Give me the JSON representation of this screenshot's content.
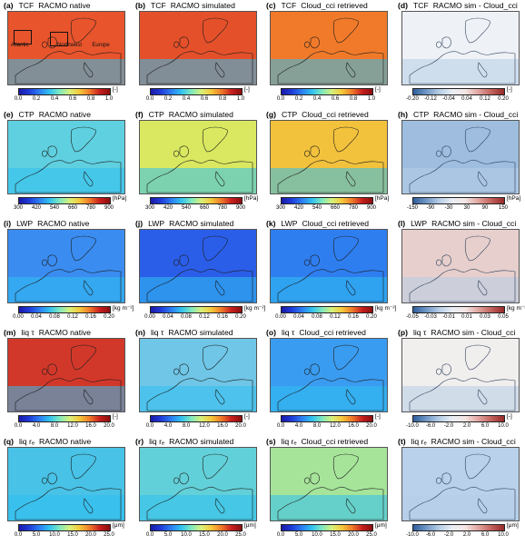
{
  "colors": {
    "ocean_blue": "#1f3bd9",
    "land_line": "#2b2b2b",
    "bg": "#ffffff"
  },
  "colorbars": {
    "jet": [
      "#1a1aa8",
      "#1f3bd9",
      "#2c7cf2",
      "#30c0f0",
      "#7ee8c0",
      "#d7f07a",
      "#f5c83a",
      "#f07a2a",
      "#c81e1e",
      "#8a0f0f"
    ],
    "diverging": [
      "#2f5d9b",
      "#6f97c6",
      "#b6cde6",
      "#e9eef5",
      "#f3e6e3",
      "#e1a6a2",
      "#c3635d",
      "#962a28"
    ]
  },
  "panels": [
    {
      "label": "(a)",
      "var": "TCF",
      "src": "RACMO native",
      "ticks": [
        "0.0",
        "0.2",
        "0.4",
        "0.6",
        "0.8",
        "1.0"
      ],
      "unit": "[-]",
      "cmap": "jet",
      "bg": "#e8542c",
      "coast": "#1c1c1c",
      "regions": [
        {
          "name": "Atlantic",
          "nx": 0.1,
          "ny": 0.42
        },
        {
          "name": "Northwest",
          "nx": 0.5,
          "ny": 0.42
        },
        {
          "name": "Europe",
          "nx": 0.8,
          "ny": 0.42
        }
      ]
    },
    {
      "label": "(b)",
      "var": "TCF",
      "src": "RACMO simulated",
      "ticks": [
        "0.0",
        "0.2",
        "0.4",
        "0.6",
        "0.8",
        "1.0"
      ],
      "unit": "[-]",
      "cmap": "jet",
      "bg": "#e4502a",
      "coast": "#1c1c1c"
    },
    {
      "label": "(c)",
      "var": "TCF",
      "src": "Cloud_cci retrieved",
      "ticks": [
        "0.0",
        "0.2",
        "0.4",
        "0.6",
        "0.8",
        "1.0"
      ],
      "unit": "[-]",
      "cmap": "jet",
      "bg": "#f07a2a",
      "coast": "#1c1c1c"
    },
    {
      "label": "(d)",
      "var": "TCF",
      "src": "RACMO sim - Cloud_cci",
      "ticks": [
        "-0.20",
        "-0.12",
        "-0.04",
        "0.04",
        "0.12",
        "0.20"
      ],
      "unit": "[-]",
      "cmap": "diverging",
      "bg": "#eef1f6",
      "coast": "#33445a"
    },
    {
      "label": "(e)",
      "var": "CTP",
      "src": "RACMO native",
      "ticks": [
        "300",
        "420",
        "540",
        "660",
        "780",
        "900"
      ],
      "unit": "[hPa]",
      "cmap": "jet",
      "bg": "#5fd0e0",
      "coast": "#1c1c1c"
    },
    {
      "label": "(f)",
      "var": "CTP",
      "src": "RACMO simulated",
      "ticks": [
        "300",
        "420",
        "540",
        "660",
        "780",
        "900"
      ],
      "unit": "[hPa]",
      "cmap": "jet",
      "bg": "#d9e860",
      "coast": "#1c1c1c"
    },
    {
      "label": "(g)",
      "var": "CTP",
      "src": "Cloud_cci retrieved",
      "ticks": [
        "300",
        "420",
        "540",
        "660",
        "780",
        "900"
      ],
      "unit": "[hPa]",
      "cmap": "jet",
      "bg": "#f2c23c",
      "coast": "#1c1c1c"
    },
    {
      "label": "(h)",
      "var": "CTP",
      "src": "RACMO sim - Cloud_cci",
      "ticks": [
        "-150",
        "-90",
        "-30",
        "30",
        "90",
        "150"
      ],
      "unit": "[hPa]",
      "cmap": "diverging",
      "bg": "#9ebddf",
      "coast": "#2d3f58"
    },
    {
      "label": "(i)",
      "var": "LWP",
      "src": "RACMO native",
      "ticks": [
        "0.00",
        "0.04",
        "0.08",
        "0.12",
        "0.16",
        "0.20"
      ],
      "unit": "[kg m⁻²]",
      "cmap": "jet",
      "bg": "#3a8cf0",
      "coast": "#1c1c1c"
    },
    {
      "label": "(j)",
      "var": "LWP",
      "src": "RACMO simulated",
      "ticks": [
        "0.00",
        "0.04",
        "0.08",
        "0.12",
        "0.16",
        "0.20"
      ],
      "unit": "[kg m⁻²]",
      "cmap": "jet",
      "bg": "#2b5ee8",
      "coast": "#1c1c1c"
    },
    {
      "label": "(k)",
      "var": "LWP",
      "src": "Cloud_cci retrieved",
      "ticks": [
        "0.00",
        "0.04",
        "0.08",
        "0.12",
        "0.16",
        "0.20"
      ],
      "unit": "[kg m⁻²]",
      "cmap": "jet",
      "bg": "#2f7ef0",
      "coast": "#1c1c1c"
    },
    {
      "label": "(l)",
      "var": "LWP",
      "src": "RACMO sim - Cloud_cci",
      "ticks": [
        "-0.05",
        "-0.03",
        "-0.01",
        "0.01",
        "0.03",
        "0.05"
      ],
      "unit": "[kg m⁻²]",
      "cmap": "diverging",
      "bg": "#e7cfcd",
      "coast": "#2d3f58"
    },
    {
      "label": "(m)",
      "var": "liq τ",
      "src": "RACMO native",
      "ticks": [
        "0.0",
        "4.0",
        "8.0",
        "12.0",
        "16.0",
        "20.0"
      ],
      "unit": "[-]",
      "cmap": "jet",
      "bg": "#d2382a",
      "coast": "#1c1c1c"
    },
    {
      "label": "(n)",
      "var": "liq τ",
      "src": "RACMO simulated",
      "ticks": [
        "0.0",
        "4.0",
        "8.0",
        "12.0",
        "16.0",
        "20.0"
      ],
      "unit": "[-]",
      "cmap": "jet",
      "bg": "#6fc6e6",
      "coast": "#1c1c1c"
    },
    {
      "label": "(o)",
      "var": "liq τ",
      "src": "Cloud_cci retrieved",
      "ticks": [
        "0.0",
        "4.0",
        "8.0",
        "12.0",
        "16.0",
        "20.0"
      ],
      "unit": "[-]",
      "cmap": "jet",
      "bg": "#3a9cf0",
      "coast": "#1c1c1c"
    },
    {
      "label": "(p)",
      "var": "liq τ",
      "src": "RACMO sim - Cloud_cci",
      "ticks": [
        "-10.0",
        "-6.0",
        "-2.0",
        "2.0",
        "6.0",
        "10.0"
      ],
      "unit": "[-]",
      "cmap": "diverging",
      "bg": "#f1eeee",
      "coast": "#2d3f58"
    },
    {
      "label": "(q)",
      "var": "liq rₑ",
      "src": "RACMO native",
      "ticks": [
        "0.0",
        "5.0",
        "10.0",
        "15.0",
        "20.0",
        "25.0"
      ],
      "unit": "[μm]",
      "cmap": "jet",
      "bg": "#48c2e6",
      "coast": "#1c1c1c"
    },
    {
      "label": "(r)",
      "var": "liq rₑ",
      "src": "RACMO simulated",
      "ticks": [
        "0.0",
        "5.0",
        "10.0",
        "15.0",
        "20.0",
        "25.0"
      ],
      "unit": "[μm]",
      "cmap": "jet",
      "bg": "#62d0d8",
      "coast": "#1c1c1c"
    },
    {
      "label": "(s)",
      "var": "liq rₑ",
      "src": "Cloud_cci retrieved",
      "ticks": [
        "0.0",
        "5.0",
        "10.0",
        "15.0",
        "20.0",
        "25.0"
      ],
      "unit": "[μm]",
      "cmap": "jet",
      "bg": "#a6e49a",
      "coast": "#1c1c1c"
    },
    {
      "label": "(t)",
      "var": "liq rₑ",
      "src": "RACMO sim - Cloud_cci",
      "ticks": [
        "-10.0",
        "-6.0",
        "-2.0",
        "2.0",
        "6.0",
        "10.0"
      ],
      "unit": "[μm]",
      "cmap": "diverging",
      "bg": "#b9d1ea",
      "coast": "#2d3f58"
    }
  ]
}
